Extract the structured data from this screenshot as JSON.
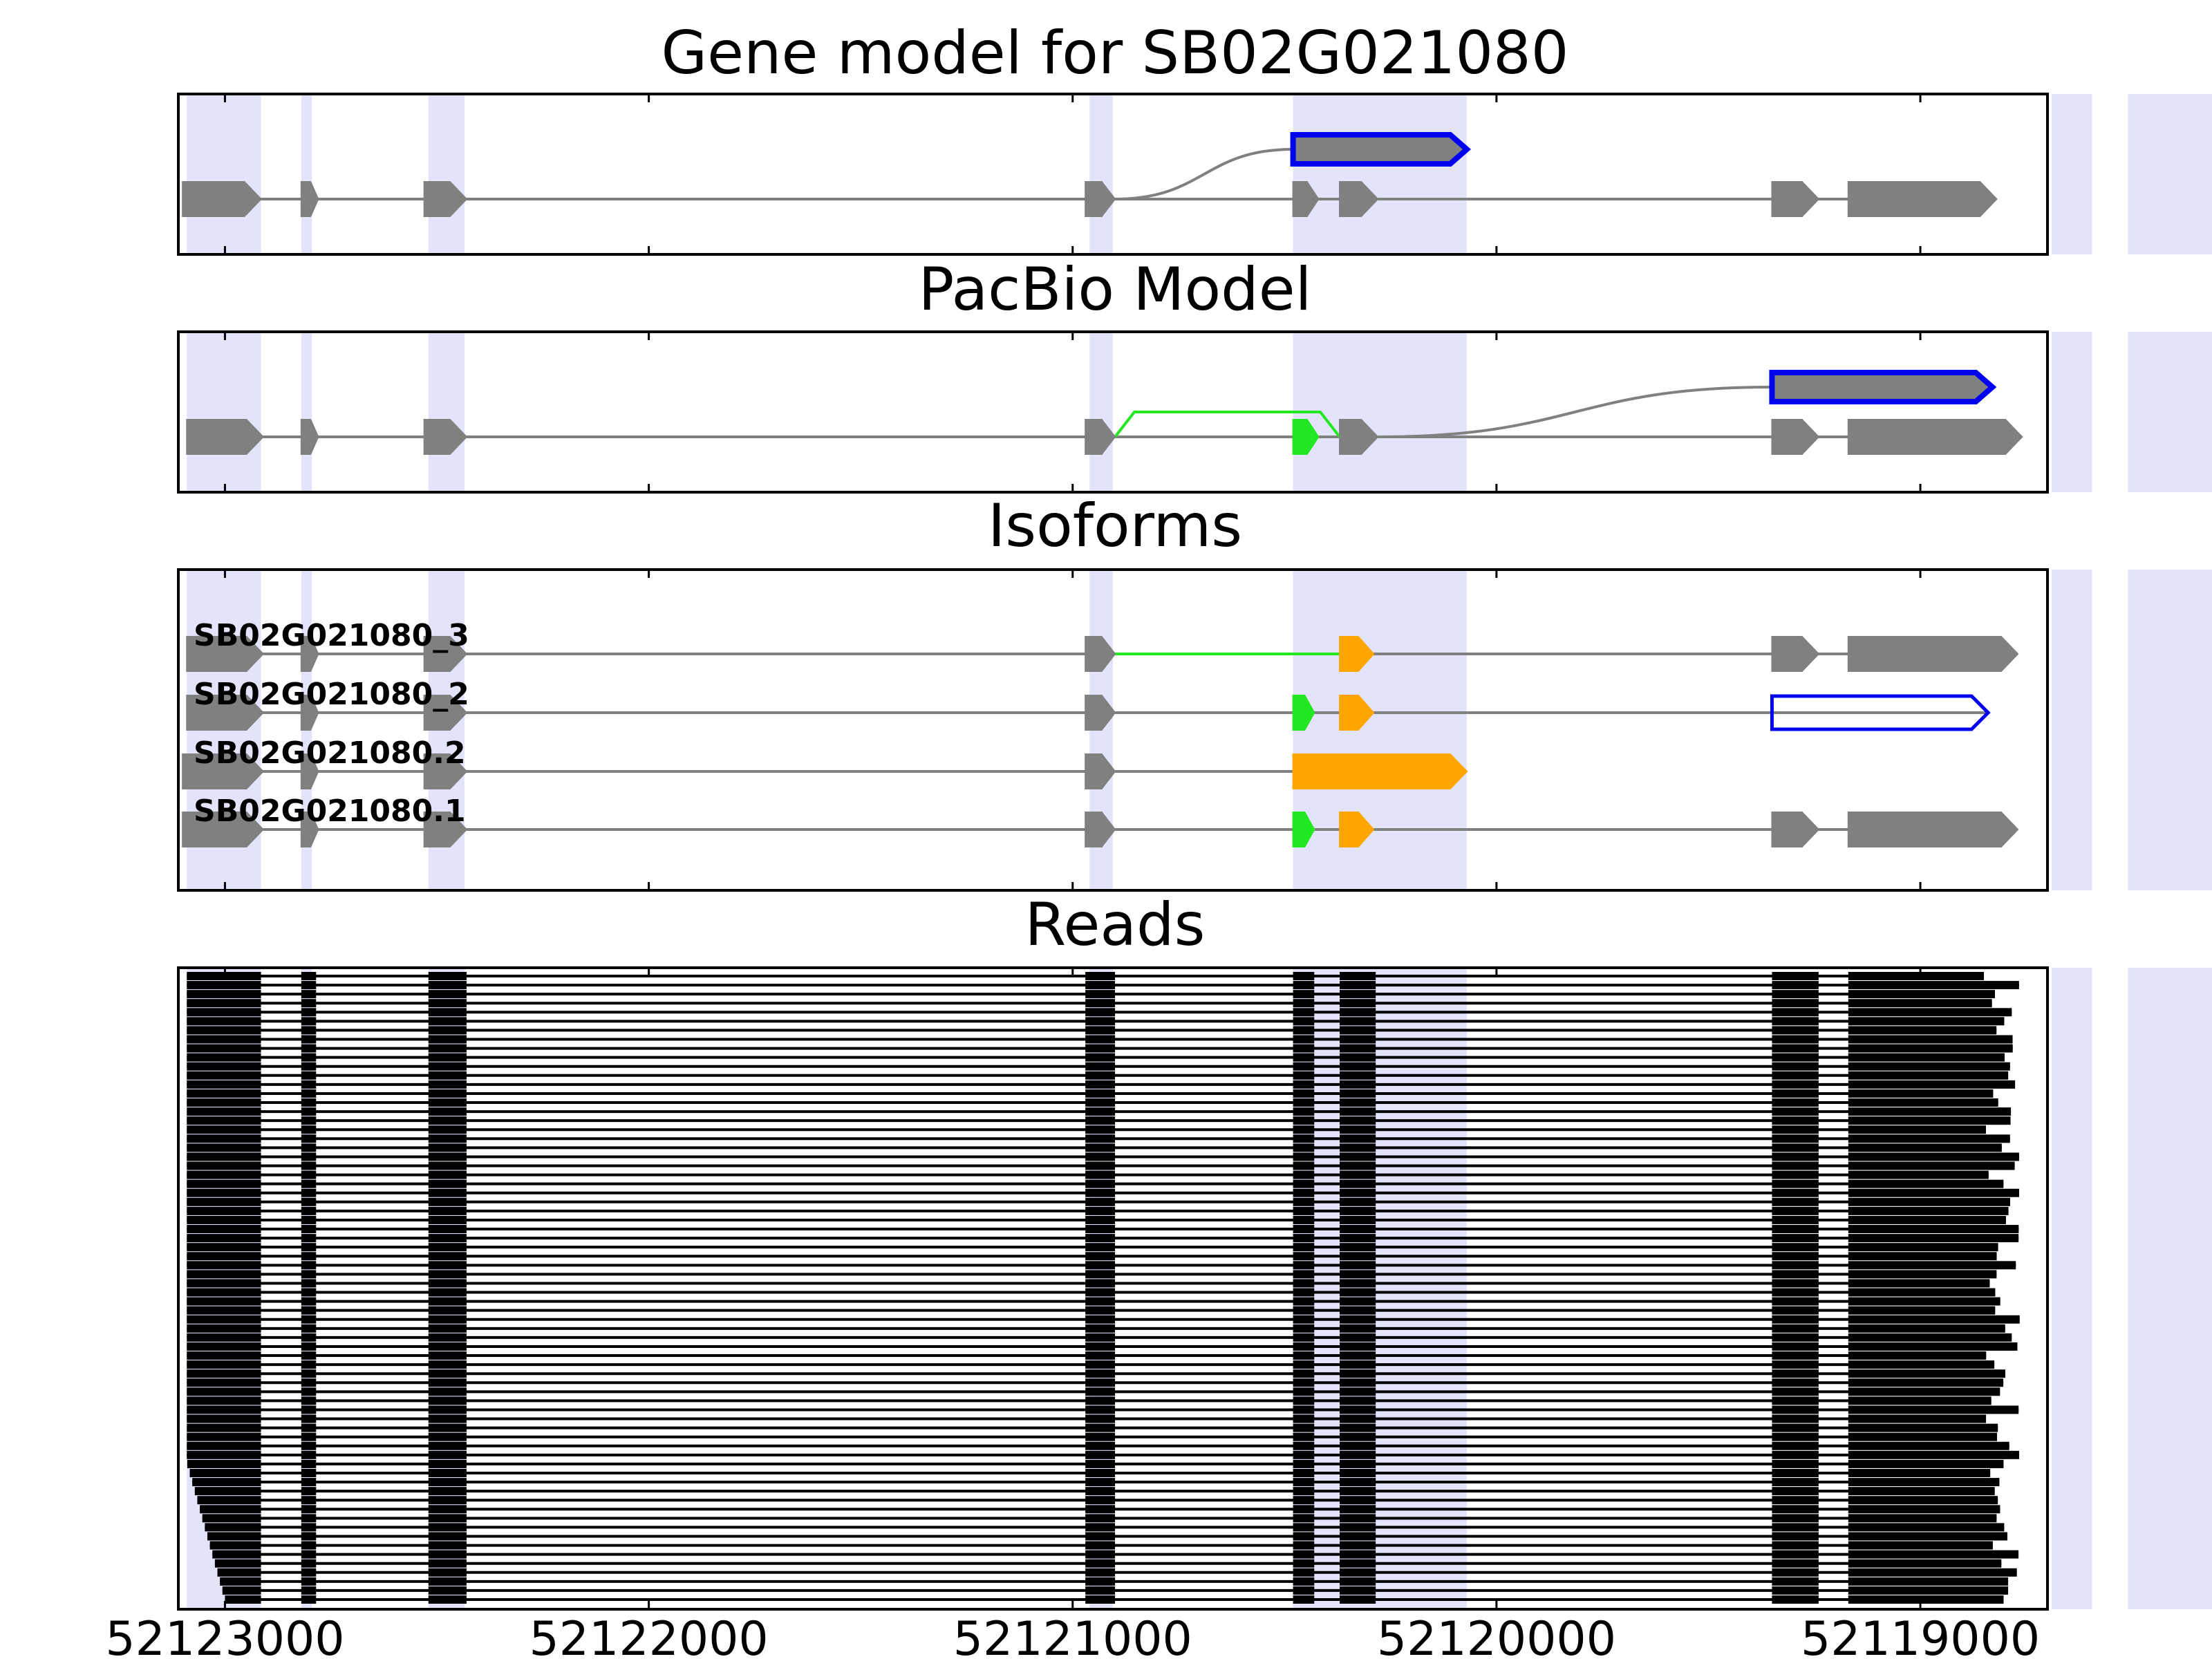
{
  "chart_data": {
    "type": "gene-structure",
    "x_axis": {
      "reversed": true,
      "xlim": [
        52123110,
        52118700
      ],
      "ticks": [
        52123000,
        52122000,
        52121000,
        52120000,
        52119000
      ],
      "tick_labels": [
        "52123000",
        "52122000",
        "52121000",
        "52120000",
        "52119000"
      ]
    },
    "colors": {
      "exon": "#808080",
      "intron": "#808080",
      "shade": "#e3e3fb",
      "highlight": "#0000ee",
      "alt_green": "#22e822",
      "alt_orange": "#ffa500",
      "read": "#000000"
    },
    "shaded_regions": [
      [
        52123090,
        52122915
      ],
      [
        52122820,
        52122795
      ],
      [
        52122520,
        52122435
      ],
      [
        52120960,
        52120905
      ],
      [
        52120480,
        52120070
      ],
      [
        52118690,
        52118595
      ],
      [
        52118510,
        52118180
      ]
    ],
    "panels": [
      {
        "title": "Gene model for SB02G021080",
        "rows": [
          {
            "label": "",
            "exons": [
              {
                "start": 52123100,
                "end": 52122915,
                "color": "exon"
              },
              {
                "start": 52122820,
                "end": 52122780,
                "color": "exon"
              },
              {
                "start": 52122530,
                "end": 52122430,
                "color": "exon"
              },
              {
                "start": 52120970,
                "end": 52120900,
                "color": "exon"
              },
              {
                "start": 52120480,
                "end": 52120420,
                "color": "exon"
              },
              {
                "start": 52120370,
                "end": 52120280,
                "color": "exon"
              },
              {
                "start": 52119350,
                "end": 52119240,
                "color": "exon"
              },
              {
                "start": 52119170,
                "end": 52118820,
                "color": "exon"
              }
            ],
            "introns": [],
            "highlight": {
              "start": 52120480,
              "end": 52120070,
              "from": 52120900
            }
          }
        ]
      },
      {
        "title": "PacBio Model",
        "rows": [
          {
            "label": "",
            "exons": [
              {
                "start": 52123090,
                "end": 52122910,
                "color": "exon"
              },
              {
                "start": 52122820,
                "end": 52122780,
                "color": "exon"
              },
              {
                "start": 52122530,
                "end": 52122430,
                "color": "exon"
              },
              {
                "start": 52120970,
                "end": 52120900,
                "color": "exon"
              },
              {
                "start": 52120480,
                "end": 52120420,
                "color": "alt_green"
              },
              {
                "start": 52120370,
                "end": 52120280,
                "color": "exon"
              },
              {
                "start": 52119350,
                "end": 52119240,
                "color": "exon"
              },
              {
                "start": 52119170,
                "end": 52118760,
                "color": "exon"
              }
            ],
            "introns": [
              {
                "start": 52120900,
                "end": 52120370,
                "color": "alt_green",
                "bump": true
              }
            ],
            "highlight": {
              "start": 52119350,
              "end": 52118830,
              "from": 52120280
            }
          }
        ]
      },
      {
        "title": "Isoforms",
        "rows": [
          {
            "label": "SB02G021080_3",
            "exons": [
              {
                "start": 52123090,
                "end": 52122910,
                "color": "exon"
              },
              {
                "start": 52122820,
                "end": 52122780,
                "color": "exon"
              },
              {
                "start": 52122530,
                "end": 52122430,
                "color": "exon"
              },
              {
                "start": 52120970,
                "end": 52120900,
                "color": "exon"
              },
              {
                "start": 52120370,
                "end": 52120290,
                "color": "alt_orange"
              },
              {
                "start": 52119350,
                "end": 52119240,
                "color": "exon"
              },
              {
                "start": 52119170,
                "end": 52118770,
                "color": "exon"
              }
            ],
            "introns": [
              {
                "start": 52120900,
                "end": 52120370,
                "color": "alt_green"
              }
            ]
          },
          {
            "label": "SB02G021080_2",
            "exons": [
              {
                "start": 52123090,
                "end": 52122910,
                "color": "exon"
              },
              {
                "start": 52122820,
                "end": 52122780,
                "color": "exon"
              },
              {
                "start": 52122530,
                "end": 52122430,
                "color": "exon"
              },
              {
                "start": 52120970,
                "end": 52120900,
                "color": "exon"
              },
              {
                "start": 52120480,
                "end": 52120430,
                "color": "alt_green"
              },
              {
                "start": 52120370,
                "end": 52120290,
                "color": "alt_orange"
              },
              {
                "start": 52119350,
                "end": 52118840,
                "color": "highlight",
                "outline": true
              }
            ],
            "introns": []
          },
          {
            "label": "SB02G021080.2",
            "exons": [
              {
                "start": 52123100,
                "end": 52122910,
                "color": "exon"
              },
              {
                "start": 52122820,
                "end": 52122780,
                "color": "exon"
              },
              {
                "start": 52122530,
                "end": 52122430,
                "color": "exon"
              },
              {
                "start": 52120970,
                "end": 52120900,
                "color": "exon"
              },
              {
                "start": 52120480,
                "end": 52120070,
                "color": "alt_orange"
              }
            ],
            "introns": []
          },
          {
            "label": "SB02G021080.1",
            "exons": [
              {
                "start": 52123100,
                "end": 52122910,
                "color": "exon"
              },
              {
                "start": 52122820,
                "end": 52122780,
                "color": "exon"
              },
              {
                "start": 52122530,
                "end": 52122430,
                "color": "exon"
              },
              {
                "start": 52120970,
                "end": 52120900,
                "color": "exon"
              },
              {
                "start": 52120480,
                "end": 52120430,
                "color": "alt_green"
              },
              {
                "start": 52120370,
                "end": 52120290,
                "color": "alt_orange"
              },
              {
                "start": 52119350,
                "end": 52119240,
                "color": "exon"
              },
              {
                "start": 52119170,
                "end": 52118770,
                "color": "exon"
              }
            ],
            "introns": []
          }
        ]
      },
      {
        "title": "Reads",
        "read_count": 70,
        "read_exons": [
          [
            52123090,
            52122915
          ],
          [
            52122820,
            52122785
          ],
          [
            52122520,
            52122430
          ],
          [
            52120970,
            52120900
          ],
          [
            52120480,
            52120430
          ],
          [
            52120370,
            52120285
          ],
          [
            52119350,
            52119240
          ],
          [
            52119170,
            null
          ]
        ],
        "read_start_range": [
          52123090,
          52123000
        ],
        "read_end_range": [
          52118850,
          52118760
        ]
      }
    ]
  }
}
